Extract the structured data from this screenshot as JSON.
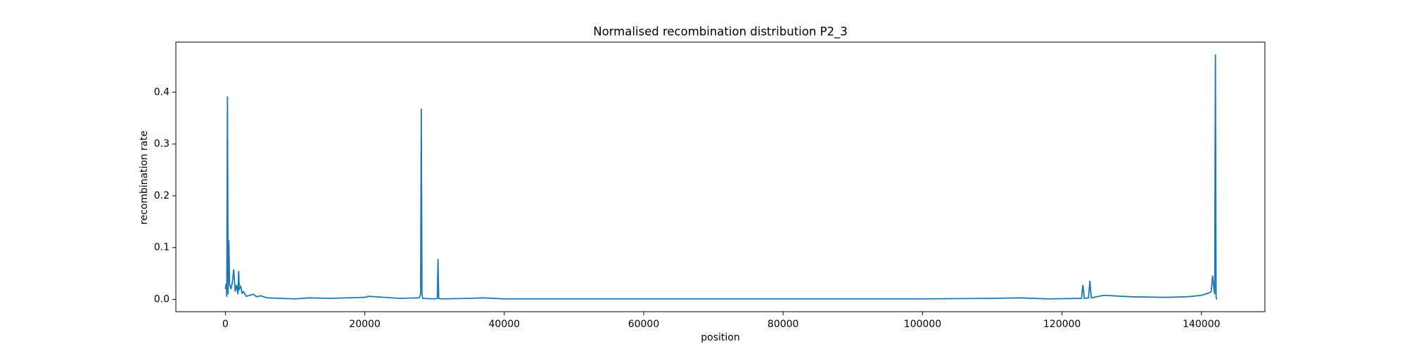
{
  "chart_data": {
    "type": "line",
    "title": "Normalised recombination distribution P2_3",
    "x_label": "position",
    "y_label": "recombination rate",
    "x": [
      0,
      100,
      200,
      300,
      400,
      500,
      600,
      800,
      1000,
      1200,
      1400,
      1600,
      1800,
      1900,
      2000,
      2200,
      2400,
      2600,
      3000,
      3500,
      4000,
      4500,
      5000,
      6000,
      8000,
      10000,
      12000,
      15000,
      20000,
      20500,
      25000,
      27800,
      28000,
      28100,
      28200,
      28300,
      30000,
      30400,
      30500,
      30600,
      31000,
      35000,
      37000,
      40000,
      50000,
      60000,
      70000,
      80000,
      90000,
      100000,
      110000,
      114000,
      118000,
      122800,
      123000,
      123200,
      123800,
      124000,
      124200,
      126000,
      130000,
      135000,
      138000,
      140000,
      141000,
      141400,
      141600,
      141800,
      141900,
      142000,
      142100,
      142200
    ],
    "series": [
      {
        "name": "recombination rate",
        "color": "#1f77b4",
        "values": [
          0.02,
          0.03,
          0.005,
          0.392,
          0.01,
          0.114,
          0.03,
          0.02,
          0.033,
          0.058,
          0.015,
          0.028,
          0.01,
          0.055,
          0.02,
          0.025,
          0.012,
          0.015,
          0.006,
          0.008,
          0.01,
          0.005,
          0.007,
          0.003,
          0.002,
          0.001,
          0.003,
          0.002,
          0.004,
          0.006,
          0.002,
          0.003,
          0.01,
          0.368,
          0.012,
          0.002,
          0.001,
          0.002,
          0.078,
          0.002,
          0.001,
          0.002,
          0.003,
          0.001,
          0.001,
          0.001,
          0.001,
          0.001,
          0.001,
          0.001,
          0.002,
          0.003,
          0.001,
          0.002,
          0.028,
          0.002,
          0.003,
          0.036,
          0.003,
          0.008,
          0.005,
          0.004,
          0.005,
          0.008,
          0.012,
          0.015,
          0.046,
          0.02,
          0.01,
          0.473,
          0.005,
          0
        ]
      }
    ],
    "xlim": [
      -7100,
      149100
    ],
    "xticks": [
      0,
      20000,
      40000,
      60000,
      80000,
      100000,
      120000,
      140000
    ],
    "ylim": [
      -0.0237,
      0.4966
    ],
    "yticks": [
      {
        "value": 0,
        "label": "0.0"
      },
      0.1,
      0.2,
      0.3,
      0.4
    ]
  }
}
